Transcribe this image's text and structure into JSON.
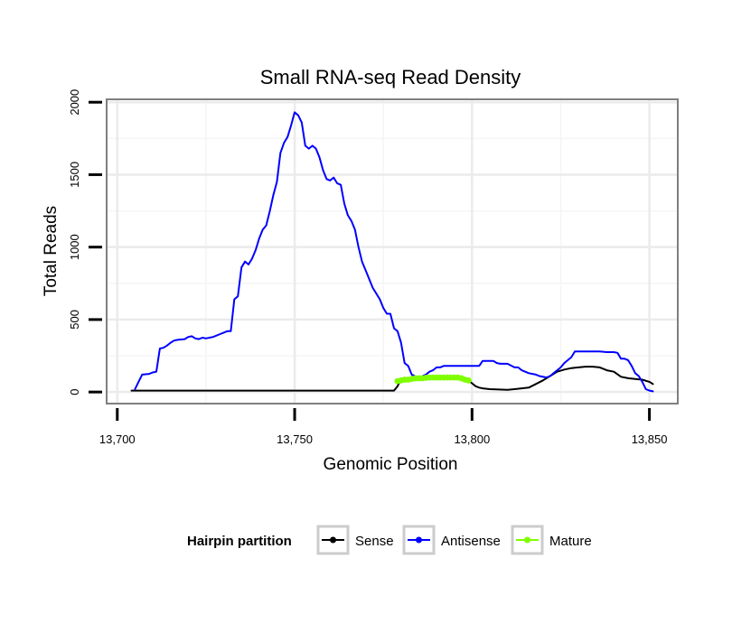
{
  "chart_data": {
    "type": "line",
    "title": "Small RNA-seq Read Density",
    "xlabel": "Genomic Position",
    "ylabel": "Total Reads",
    "xlim": [
      13697,
      13858
    ],
    "ylim": [
      -80,
      2020
    ],
    "x_ticks": [
      13700,
      13750,
      13800,
      13850
    ],
    "x_tick_labels": [
      "13,700",
      "13,750",
      "13,800",
      "13,850"
    ],
    "y_ticks": [
      0,
      500,
      1000,
      1500,
      2000
    ],
    "y_tick_labels": [
      "0",
      "500",
      "1000",
      "1500",
      "2000"
    ],
    "grid": true,
    "legend": {
      "title": "Hairpin partition",
      "position": "bottom",
      "entries": [
        "Sense",
        "Antisense",
        "Mature"
      ]
    },
    "series": [
      {
        "name": "Sense",
        "color": "#000000",
        "x": [
          13704,
          13720,
          13740,
          13760,
          13778,
          13779,
          13780,
          13785,
          13790,
          13795,
          13797,
          13798,
          13799,
          13800,
          13801,
          13802,
          13803,
          13805,
          13810,
          13812,
          13814,
          13816,
          13818,
          13820,
          13822,
          13824,
          13826,
          13828,
          13830,
          13832,
          13834,
          13836,
          13838,
          13840,
          13842,
          13844,
          13846,
          13848,
          13850,
          13851
        ],
        "y": [
          10,
          10,
          10,
          10,
          10,
          40,
          90,
          95,
          100,
          100,
          95,
          90,
          80,
          60,
          40,
          30,
          25,
          20,
          15,
          20,
          25,
          30,
          55,
          80,
          110,
          140,
          155,
          165,
          170,
          175,
          175,
          170,
          150,
          140,
          105,
          95,
          90,
          85,
          70,
          55
        ]
      },
      {
        "name": "Antisense",
        "color": "#0000ff",
        "x": [
          13705,
          13706,
          13707,
          13709,
          13710,
          13711,
          13712,
          13713,
          13714,
          13715,
          13716,
          13717,
          13719,
          13720,
          13721,
          13722,
          13723,
          13724,
          13725,
          13726,
          13727,
          13729,
          13730,
          13731,
          13732,
          13733,
          13734,
          13735,
          13736,
          13737,
          13738,
          13739,
          13740,
          13741,
          13742,
          13743,
          13744,
          13745,
          13746,
          13747,
          13748,
          13749,
          13750,
          13751,
          13752,
          13753,
          13754,
          13755,
          13756,
          13757,
          13758,
          13759,
          13760,
          13761,
          13762,
          13763,
          13764,
          13765,
          13766,
          13767,
          13768,
          13769,
          13770,
          13771,
          13772,
          13773,
          13774,
          13775,
          13776,
          13777,
          13778,
          13779,
          13780,
          13781,
          13782,
          13783,
          13784,
          13785,
          13786,
          13787,
          13788,
          13789,
          13790,
          13791,
          13792,
          13793,
          13795,
          13796,
          13797,
          13798,
          13799,
          13800,
          13802,
          13803,
          13806,
          13807,
          13808,
          13810,
          13812,
          13813,
          13814,
          13816,
          13818,
          13819,
          13821,
          13822,
          13823,
          13824,
          13825,
          13826,
          13828,
          13829,
          13830,
          13832,
          13834,
          13836,
          13838,
          13840,
          13841,
          13842,
          13843,
          13844,
          13845,
          13846,
          13847,
          13848,
          13849,
          13850,
          13851
        ],
        "y": [
          20,
          70,
          120,
          125,
          135,
          140,
          300,
          305,
          320,
          340,
          355,
          360,
          365,
          380,
          385,
          370,
          365,
          375,
          370,
          375,
          380,
          400,
          410,
          420,
          420,
          640,
          660,
          860,
          900,
          880,
          920,
          980,
          1060,
          1120,
          1150,
          1250,
          1360,
          1450,
          1650,
          1720,
          1760,
          1840,
          1930,
          1910,
          1860,
          1700,
          1680,
          1700,
          1680,
          1620,
          1530,
          1470,
          1460,
          1480,
          1440,
          1430,
          1300,
          1220,
          1180,
          1120,
          1000,
          900,
          840,
          780,
          720,
          680,
          640,
          580,
          540,
          540,
          440,
          420,
          340,
          200,
          180,
          120,
          110,
          100,
          110,
          120,
          140,
          150,
          170,
          170,
          180,
          180,
          180,
          180,
          180,
          180,
          180,
          180,
          180,
          215,
          215,
          200,
          195,
          195,
          170,
          170,
          150,
          130,
          120,
          110,
          100,
          110,
          130,
          150,
          170,
          200,
          240,
          280,
          280,
          280,
          280,
          280,
          275,
          275,
          270,
          230,
          230,
          220,
          180,
          130,
          110,
          70,
          20,
          10,
          5
        ]
      },
      {
        "name": "Mature",
        "color": "#7fff00",
        "x": [
          13779,
          13780,
          13781,
          13782,
          13783,
          13784,
          13785,
          13786,
          13787,
          13788,
          13789,
          13790,
          13791,
          13792,
          13793,
          13794,
          13795,
          13796,
          13797,
          13798,
          13799
        ],
        "y": [
          75,
          80,
          85,
          85,
          90,
          95,
          95,
          95,
          98,
          100,
          100,
          100,
          100,
          100,
          100,
          100,
          100,
          100,
          95,
          85,
          80
        ]
      }
    ]
  }
}
